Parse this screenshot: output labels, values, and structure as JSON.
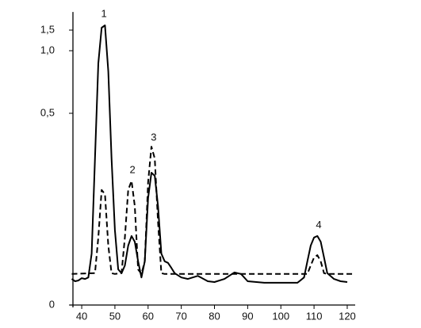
{
  "chart_data": {
    "type": "line",
    "xlim": [
      36.4,
      122.4
    ],
    "xticks": [
      40,
      50,
      60,
      70,
      80,
      90,
      100,
      110,
      120
    ],
    "ylim": [
      0,
      1.94
    ],
    "yticks": [
      0,
      {
        "value": 0.5,
        "label": "0,5"
      },
      {
        "value": 1.0,
        "label": "1,0"
      },
      {
        "value": 1.5,
        "label": "1,5"
      }
    ],
    "series": [
      {
        "color": "#000000",
        "style": "solid",
        "x": [
          37,
          38,
          39,
          40,
          41,
          42,
          43,
          44,
          45,
          46,
          47,
          48,
          49,
          50,
          51,
          52,
          53,
          54,
          55,
          56,
          57,
          58,
          59,
          60,
          61,
          62,
          63,
          64,
          65,
          66,
          67,
          68,
          70,
          72,
          75,
          78,
          80,
          83,
          86,
          88,
          90,
          95,
          100,
          105,
          107,
          108,
          109,
          110,
          111,
          112,
          113,
          114,
          116,
          118,
          120
        ],
        "values": [
          0.068,
          0.062,
          0.064,
          0.07,
          0.068,
          0.072,
          0.134,
          0.382,
          0.899,
          1.558,
          1.615,
          0.835,
          0.382,
          0.196,
          0.093,
          0.083,
          0.103,
          0.155,
          0.18,
          0.165,
          0.114,
          0.072,
          0.114,
          0.279,
          0.345,
          0.337,
          0.258,
          0.134,
          0.114,
          0.11,
          0.097,
          0.083,
          0.072,
          0.068,
          0.076,
          0.062,
          0.06,
          0.068,
          0.085,
          0.081,
          0.062,
          0.058,
          0.058,
          0.058,
          0.072,
          0.114,
          0.155,
          0.176,
          0.18,
          0.165,
          0.124,
          0.083,
          0.068,
          0.062,
          0.06
        ]
      },
      {
        "color": "#000000",
        "style": "dashed",
        "x": [
          37,
          44,
          45,
          46,
          47,
          48,
          49,
          50,
          52,
          53,
          54,
          55,
          56,
          57,
          58,
          59,
          60,
          61,
          62,
          63,
          64,
          65,
          108,
          109,
          110,
          111,
          112,
          113,
          114,
          122
        ],
        "values": [
          0.081,
          0.083,
          0.176,
          0.3,
          0.289,
          0.155,
          0.083,
          0.081,
          0.083,
          0.176,
          0.3,
          0.324,
          0.258,
          0.093,
          0.081,
          0.114,
          0.32,
          0.413,
          0.382,
          0.217,
          0.083,
          0.081,
          0.081,
          0.103,
          0.124,
          0.13,
          0.114,
          0.083,
          0.081,
          0.081
        ]
      }
    ],
    "annotations": [
      {
        "text": "1",
        "x": 46.7,
        "y": 1.88
      },
      {
        "text": "2",
        "x": 55.3,
        "y": 0.351
      },
      {
        "text": "3",
        "x": 61.7,
        "y": 0.436
      },
      {
        "text": "4",
        "x": 111.4,
        "y": 0.207
      }
    ]
  }
}
